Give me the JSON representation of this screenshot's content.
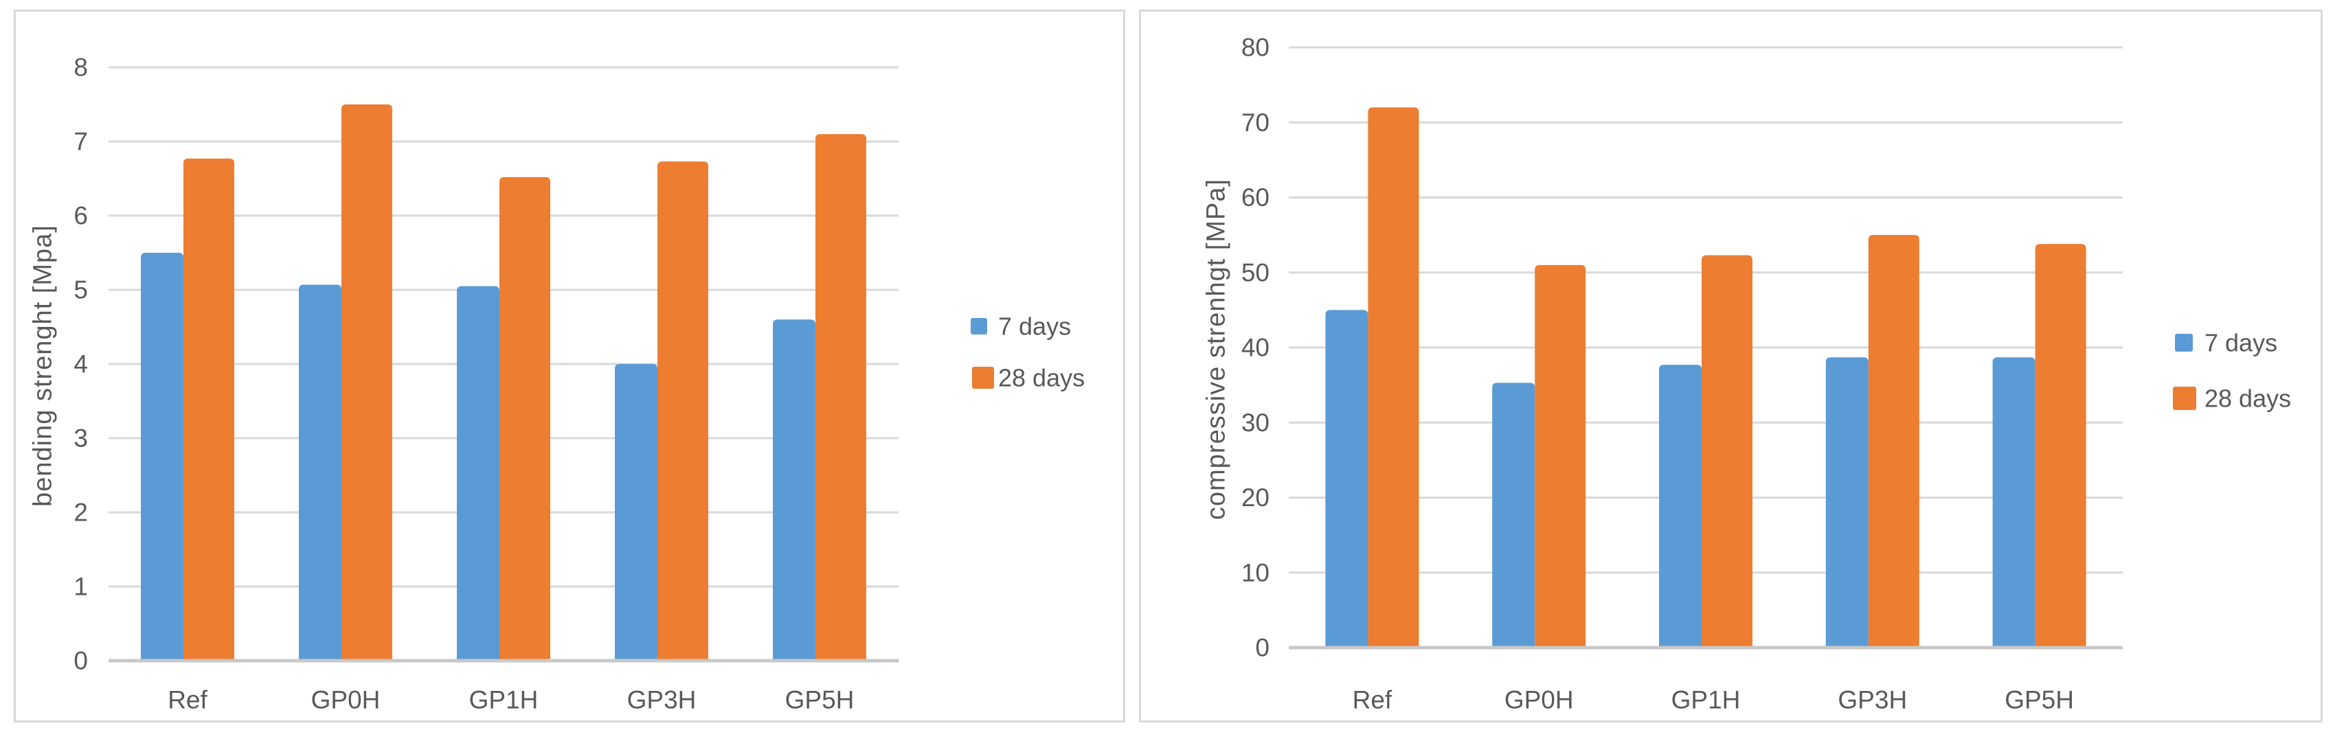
{
  "figure": {
    "description": "Two grouped bar charts comparing mortar strengths at 7 and 28 days",
    "background": "#ffffff"
  },
  "style": {
    "text_color": "#595959",
    "gridline_color": "#d9d9d9",
    "axis_line_color": "#c8c8c8",
    "panel_border_color": "#d9d9d9",
    "series_blue": "#5b9bd5",
    "series_orange": "#ed7d31"
  },
  "chart_data": [
    {
      "type": "bar",
      "title": "",
      "xlabel": "",
      "ylabel": "bending strenght [Mpa]",
      "categories": [
        "Ref",
        "GP0H",
        "GP1H",
        "GP3H",
        "GP5H"
      ],
      "series": [
        {
          "name": "7 days",
          "color": "#5b9bd5",
          "values": [
            5.5,
            5.07,
            5.05,
            4.0,
            4.6
          ]
        },
        {
          "name": "28 days",
          "color": "#ed7d31",
          "values": [
            6.77,
            7.5,
            6.52,
            6.73,
            7.1
          ]
        }
      ],
      "ylim": [
        0,
        8
      ],
      "ytick_step": 1,
      "grid": true,
      "legend_position": "right",
      "legend_labels": [
        "7 days",
        "28 days"
      ]
    },
    {
      "type": "bar",
      "title": "",
      "xlabel": "",
      "ylabel": "compressive strenhgt [MPa]",
      "categories": [
        "Ref",
        "GP0H",
        "GP1H",
        "GP3H",
        "GP5H"
      ],
      "series": [
        {
          "name": "7 days",
          "color": "#5b9bd5",
          "values": [
            45,
            35.3,
            37.7,
            38.7,
            38.7
          ]
        },
        {
          "name": "28 days",
          "color": "#ed7d31",
          "values": [
            72,
            51,
            52.3,
            55,
            53.8
          ]
        }
      ],
      "ylim": [
        0,
        80
      ],
      "ytick_step": 10,
      "grid": true,
      "legend_position": "right",
      "legend_labels": [
        "7 days",
        "28 days"
      ]
    }
  ]
}
